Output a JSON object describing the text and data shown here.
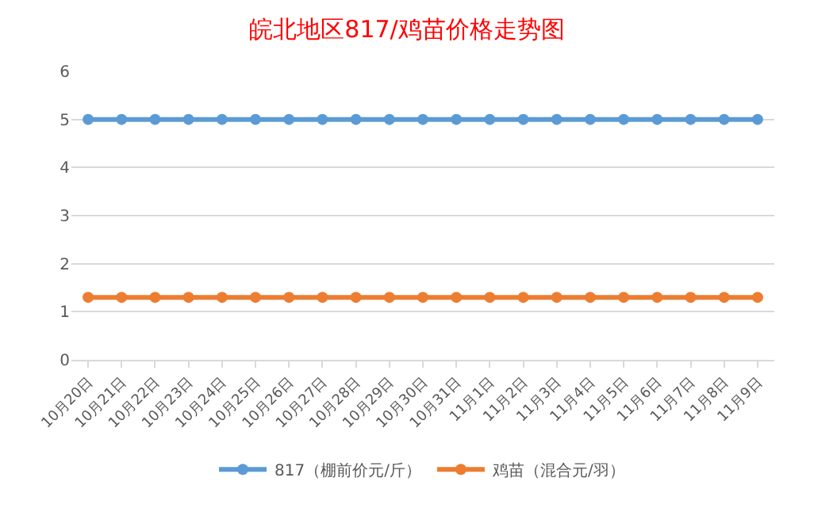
{
  "chart_data": {
    "type": "line",
    "title": "皖北地区817/鸡苗价格走势图",
    "categories": [
      "10月20日",
      "10月21日",
      "10月22日",
      "10月23日",
      "10月24日",
      "10月25日",
      "10月26日",
      "10月27日",
      "10月28日",
      "10月29日",
      "10月30日",
      "10月31日",
      "11月1日",
      "11月2日",
      "11月3日",
      "11月4日",
      "11月5日",
      "11月6日",
      "11月7日",
      "11月8日",
      "11月9日"
    ],
    "series": [
      {
        "name": "817（棚前价元/斤）",
        "color": "#5b9bd5",
        "values": [
          5,
          5,
          5,
          5,
          5,
          5,
          5,
          5,
          5,
          5,
          5,
          5,
          5,
          5,
          5,
          5,
          5,
          5,
          5,
          5,
          5
        ]
      },
      {
        "name": "鸡苗（混合元/羽）",
        "color": "#ed7d31",
        "values": [
          1.3,
          1.3,
          1.3,
          1.3,
          1.3,
          1.3,
          1.3,
          1.3,
          1.3,
          1.3,
          1.3,
          1.3,
          1.3,
          1.3,
          1.3,
          1.3,
          1.3,
          1.3,
          1.3,
          1.3,
          1.3
        ]
      }
    ],
    "ylim": [
      0,
      6
    ],
    "yticks": [
      0,
      1,
      2,
      3,
      4,
      5,
      6
    ],
    "grid": "y",
    "legend": "bottom",
    "marker": "circle",
    "line_style": "solid"
  }
}
